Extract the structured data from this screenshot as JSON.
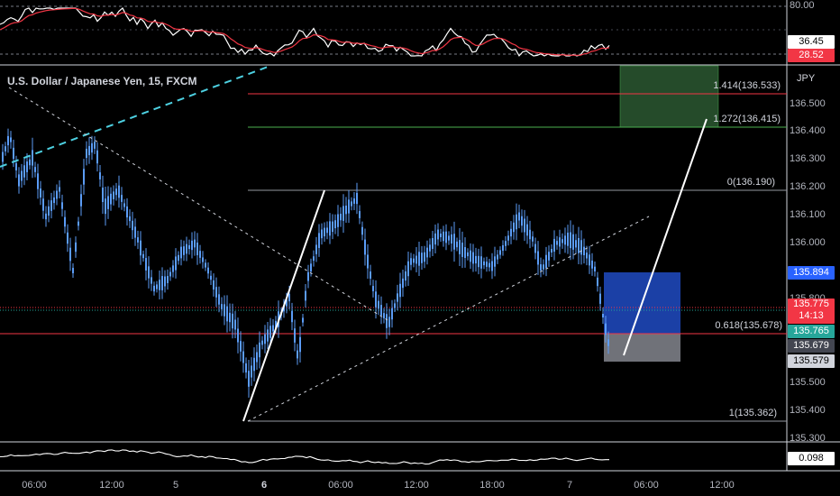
{
  "header": {
    "symbol": "U.S. Dollar / Japanese Yen, 15, FXCM",
    "unit": "JPY"
  },
  "rsi_panel": {
    "level_top": "80.00",
    "value_1": "36.45",
    "value_2": "28.52",
    "value_1_color": "#ffffff",
    "value_2_color": "#f23645"
  },
  "bottom_panel": {
    "value": "0.098"
  },
  "price_axis": {
    "ticks": [
      "136.500",
      "136.400",
      "136.300",
      "136.200",
      "136.100",
      "136.000",
      "135.800",
      "135.500",
      "135.400",
      "135.300"
    ]
  },
  "price_tags": {
    "target": "135.894",
    "current": "135.775",
    "countdown": "14:13",
    "bid": "135.765",
    "entry": "135.679",
    "stop": "135.579"
  },
  "fib_levels": [
    {
      "label": "1.414(136.533)",
      "color": "#f23645"
    },
    {
      "label": "1.272(136.415)",
      "color": "#4caf50"
    },
    {
      "label": "0(136.190)",
      "color": "#9598a1"
    },
    {
      "label": "0.618(135.678)",
      "color": "#f23645"
    },
    {
      "label": "1(135.362)",
      "color": "#9598a1"
    }
  ],
  "time_axis": [
    {
      "label": "06:00",
      "bold": false
    },
    {
      "label": "12:00",
      "bold": false
    },
    {
      "label": "5",
      "bold": false
    },
    {
      "label": "6",
      "bold": true
    },
    {
      "label": "06:00",
      "bold": false
    },
    {
      "label": "12:00",
      "bold": false
    },
    {
      "label": "18:00",
      "bold": false
    },
    {
      "label": "7",
      "bold": false
    },
    {
      "label": "06:00",
      "bold": false
    },
    {
      "label": "12:00",
      "bold": false
    }
  ],
  "colors": {
    "candle": "#5b9cf6",
    "background": "#000000",
    "up_tag": "#2962ff",
    "bid_tag": "#26a69a"
  }
}
